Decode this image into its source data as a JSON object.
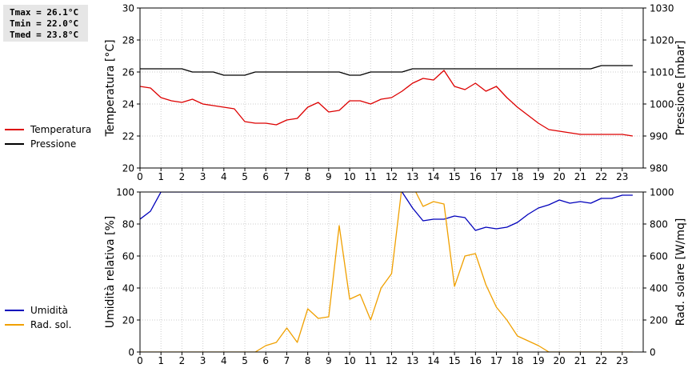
{
  "stats": {
    "tmax": "Tmax = 26.1°C",
    "tmin": "Tmin = 22.0°C",
    "tmed": "Tmed = 23.8°C"
  },
  "chart_data": [
    {
      "type": "line",
      "x_ticks": [
        0,
        1,
        2,
        3,
        4,
        5,
        6,
        7,
        8,
        9,
        10,
        11,
        12,
        13,
        14,
        15,
        16,
        17,
        18,
        19,
        20,
        21,
        22,
        23
      ],
      "xlim": [
        0,
        24
      ],
      "ylabel": "Temperatura [°C]",
      "ylim": [
        20,
        30
      ],
      "y_ticks": [
        20,
        22,
        24,
        26,
        28,
        30
      ],
      "y2label": "Pressione [mbar]",
      "y2lim": [
        980,
        1030
      ],
      "y2_ticks": [
        980,
        990,
        1000,
        1010,
        1020,
        1030
      ],
      "grid": true,
      "legend": "left",
      "series": [
        {
          "name": "Temperatura",
          "axis": "left",
          "color": "#dd0000",
          "x": [
            0,
            0.5,
            1,
            1.5,
            2,
            2.5,
            3,
            3.5,
            4,
            4.5,
            5,
            5.5,
            6,
            6.5,
            7,
            7.5,
            8,
            8.5,
            9,
            9.5,
            10,
            10.5,
            11,
            11.5,
            12,
            12.5,
            13,
            13.5,
            14,
            14.5,
            15,
            15.5,
            16,
            16.5,
            17,
            17.5,
            18,
            18.5,
            19,
            19.5,
            20,
            20.5,
            21,
            21.5,
            22,
            22.5,
            23,
            23.5
          ],
          "y": [
            25.1,
            25.0,
            24.4,
            24.2,
            24.1,
            24.3,
            24.0,
            23.9,
            23.8,
            23.7,
            22.9,
            22.8,
            22.8,
            22.7,
            23.0,
            23.1,
            23.8,
            24.1,
            23.5,
            23.6,
            24.2,
            24.2,
            24.0,
            24.3,
            24.4,
            24.8,
            25.3,
            25.6,
            25.5,
            26.1,
            25.1,
            24.9,
            25.3,
            24.8,
            25.1,
            24.4,
            23.8,
            23.3,
            22.8,
            22.4,
            22.3,
            22.2,
            22.1,
            22.1,
            22.1,
            22.1,
            22.1,
            22.0
          ]
        },
        {
          "name": "Pressione",
          "axis": "right",
          "color": "#000000",
          "x": [
            0,
            0.5,
            1,
            1.5,
            2,
            2.5,
            3,
            3.5,
            4,
            4.5,
            5,
            5.5,
            6,
            6.5,
            7,
            7.5,
            8,
            8.5,
            9,
            9.5,
            10,
            10.5,
            11,
            11.5,
            12,
            12.5,
            13,
            13.5,
            14,
            14.5,
            15,
            15.5,
            16,
            16.5,
            17,
            17.5,
            18,
            18.5,
            19,
            19.5,
            20,
            20.5,
            21,
            21.5,
            22,
            22.5,
            23,
            23.5
          ],
          "y": [
            1011,
            1011,
            1011,
            1011,
            1011,
            1010,
            1010,
            1010,
            1009,
            1009,
            1009,
            1010,
            1010,
            1010,
            1010,
            1010,
            1010,
            1010,
            1010,
            1010,
            1009,
            1009,
            1010,
            1010,
            1010,
            1010,
            1011,
            1011,
            1011,
            1011,
            1011,
            1011,
            1011,
            1011,
            1011,
            1011,
            1011,
            1011,
            1011,
            1011,
            1011,
            1011,
            1011,
            1011,
            1012,
            1012,
            1012,
            1012
          ]
        }
      ]
    },
    {
      "type": "line",
      "x_ticks": [
        0,
        1,
        2,
        3,
        4,
        5,
        6,
        7,
        8,
        9,
        10,
        11,
        12,
        13,
        14,
        15,
        16,
        17,
        18,
        19,
        20,
        21,
        22,
        23
      ],
      "xlim": [
        0,
        24
      ],
      "ylabel": "Umidità relativa [%]",
      "ylim": [
        0,
        100
      ],
      "y_ticks": [
        0,
        20,
        40,
        60,
        80,
        100
      ],
      "y2label": "Rad. solare [W/mq]",
      "y2lim": [
        0,
        1000
      ],
      "y2_ticks": [
        0,
        200,
        400,
        600,
        800,
        1000
      ],
      "grid": true,
      "legend": "left",
      "series": [
        {
          "name": "Umidità",
          "axis": "left",
          "color": "#0000bb",
          "x": [
            0,
            0.5,
            1,
            1.5,
            2,
            2.5,
            3,
            3.5,
            4,
            4.5,
            5,
            5.5,
            6,
            6.5,
            7,
            7.5,
            8,
            8.5,
            9,
            9.5,
            10,
            10.5,
            11,
            11.5,
            12,
            12.5,
            13,
            13.5,
            14,
            14.5,
            15,
            15.5,
            16,
            16.5,
            17,
            17.5,
            18,
            18.5,
            19,
            19.5,
            20,
            20.5,
            21,
            21.5,
            22,
            22.5,
            23,
            23.5
          ],
          "y": [
            83,
            88,
            100,
            100,
            100,
            100,
            100,
            100,
            100,
            100,
            100,
            100,
            100,
            100,
            100,
            100,
            100,
            100,
            100,
            100,
            100,
            100,
            100,
            100,
            100,
            100,
            90,
            82,
            83,
            83,
            85,
            84,
            76,
            78,
            77,
            78,
            81,
            86,
            90,
            92,
            95,
            93,
            94,
            93,
            96,
            96,
            98,
            98
          ]
        },
        {
          "name": "Rad. sol.",
          "axis": "right",
          "color": "#f0a000",
          "x": [
            0,
            0.5,
            1,
            1.5,
            2,
            2.5,
            3,
            3.5,
            4,
            4.5,
            5,
            5.5,
            6,
            6.5,
            7,
            7.5,
            8,
            8.5,
            9,
            9.5,
            10,
            10.5,
            11,
            11.5,
            12,
            12.5,
            13,
            13.5,
            14,
            14.5,
            15,
            15.5,
            16,
            16.5,
            17,
            17.5,
            18,
            18.5,
            19,
            19.5,
            20,
            20.5,
            21,
            21.5,
            22,
            22.5,
            23,
            23.5
          ],
          "y": [
            0,
            0,
            0,
            0,
            0,
            0,
            0,
            0,
            0,
            0,
            0,
            0,
            40,
            60,
            150,
            60,
            270,
            210,
            220,
            790,
            330,
            360,
            200,
            400,
            490,
            1040,
            1040,
            910,
            940,
            925,
            410,
            600,
            615,
            420,
            280,
            200,
            100,
            70,
            40,
            0,
            0,
            0,
            0,
            0,
            0,
            0,
            0,
            0
          ]
        }
      ]
    }
  ]
}
